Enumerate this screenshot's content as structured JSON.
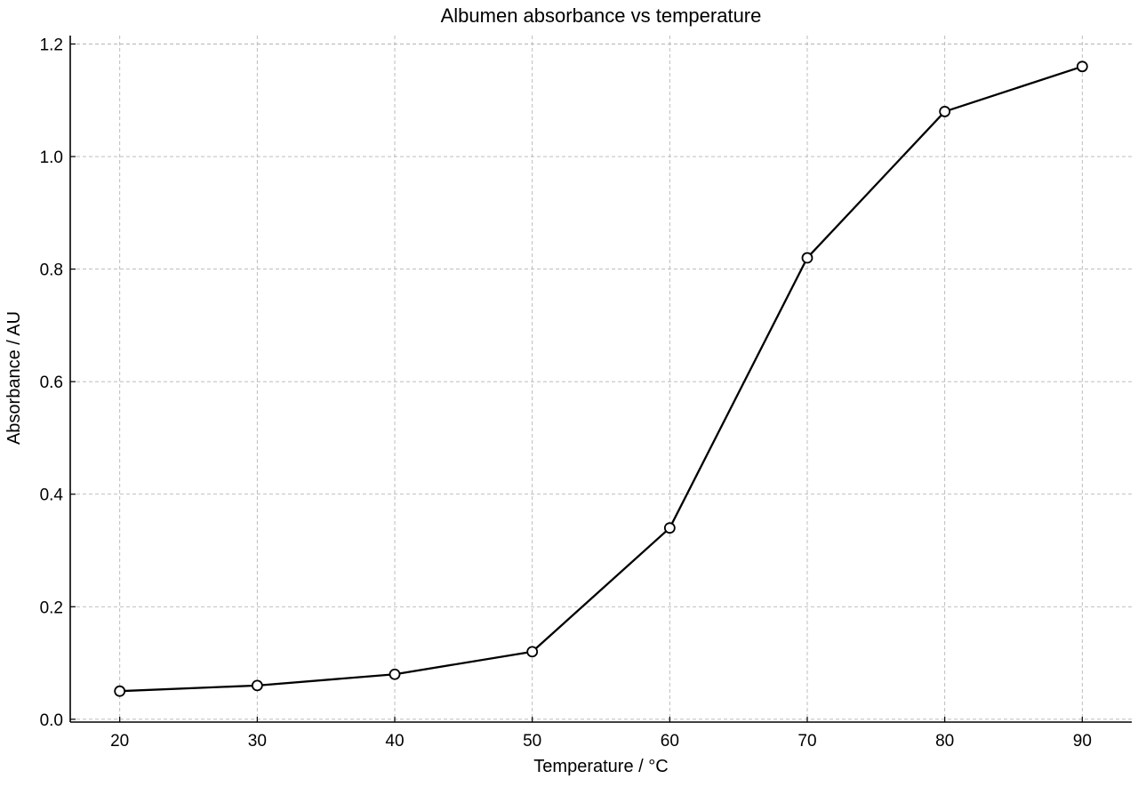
{
  "chart_data": {
    "type": "line",
    "title": "Albumen absorbance vs temperature",
    "xlabel": "Temperature / °C",
    "ylabel": "Absorbance / AU",
    "x": [
      20,
      30,
      40,
      50,
      60,
      70,
      80,
      90
    ],
    "series": [
      {
        "values": [
          0.05,
          0.06,
          0.08,
          0.12,
          0.34,
          0.82,
          1.08,
          1.16
        ],
        "marker": "hollow-circle",
        "color": "#000000"
      }
    ],
    "xticks": [
      "20",
      "30",
      "40",
      "50",
      "60",
      "70",
      "80",
      "90"
    ],
    "yticks": [
      "0.0",
      "0.2",
      "0.4",
      "0.6",
      "0.8",
      "1.0",
      "1.2"
    ],
    "xtick_values": [
      20,
      30,
      40,
      50,
      60,
      70,
      80,
      90
    ],
    "ytick_values": [
      0.0,
      0.2,
      0.4,
      0.6,
      0.8,
      1.0,
      1.2
    ],
    "xlim": [
      16.4,
      93.6
    ],
    "ylim": [
      -0.005,
      1.215
    ],
    "grid": true,
    "grid_style": "dashed",
    "legend": false
  }
}
